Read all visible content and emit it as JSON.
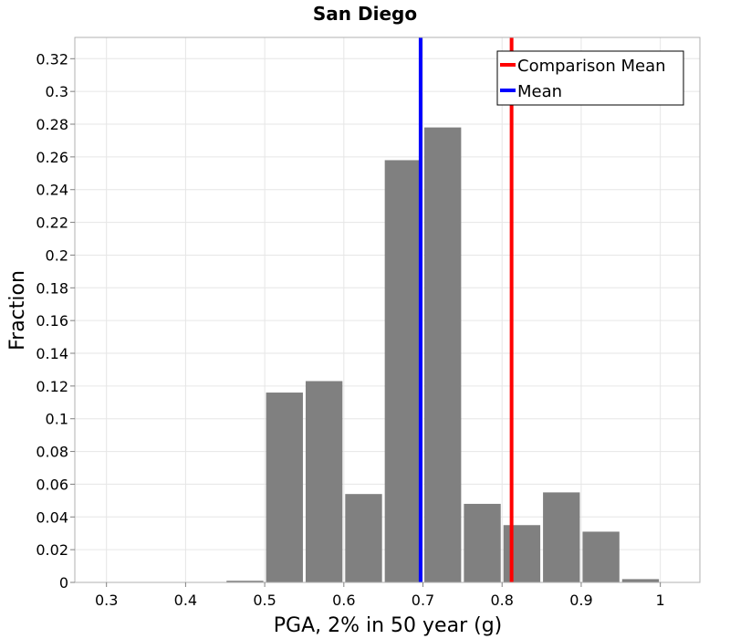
{
  "chart_data": {
    "type": "bar",
    "title": "San Diego",
    "xlabel": "PGA, 2% in 50 year (g)",
    "ylabel": "Fraction",
    "xlim": [
      0.26,
      1.05
    ],
    "ylim": [
      0,
      0.333
    ],
    "grid": true,
    "bin_width": 0.05,
    "x": [
      0.475,
      0.525,
      0.575,
      0.625,
      0.675,
      0.725,
      0.775,
      0.825,
      0.875,
      0.925,
      0.975
    ],
    "values": [
      0.001,
      0.116,
      0.123,
      0.054,
      0.258,
      0.278,
      0.048,
      0.035,
      0.055,
      0.031,
      0.002
    ],
    "bar_color": "#808080",
    "x_ticks": [
      0.3,
      0.4,
      0.5,
      0.6,
      0.7,
      0.8,
      0.9,
      1
    ],
    "x_tick_labels": [
      "0.3",
      "0.4",
      "0.5",
      "0.6",
      "0.7",
      "0.8",
      "0.9",
      "1"
    ],
    "y_ticks": [
      0,
      0.02,
      0.04,
      0.06,
      0.08,
      0.1,
      0.12,
      0.14,
      0.16,
      0.18,
      0.2,
      0.22,
      0.24,
      0.26,
      0.28,
      0.3,
      0.32
    ],
    "y_tick_labels": [
      "0",
      "0.02",
      "0.04",
      "0.06",
      "0.08",
      "0.1",
      "0.12",
      "0.14",
      "0.16",
      "0.18",
      "0.2",
      "0.22",
      "0.24",
      "0.26",
      "0.28",
      "0.3",
      "0.32"
    ],
    "vlines": [
      {
        "name": "Comparison Mean",
        "x": 0.812,
        "color": "#ff0000"
      },
      {
        "name": "Mean",
        "x": 0.697,
        "color": "#0000ff"
      }
    ],
    "legend_position": "top-right"
  }
}
